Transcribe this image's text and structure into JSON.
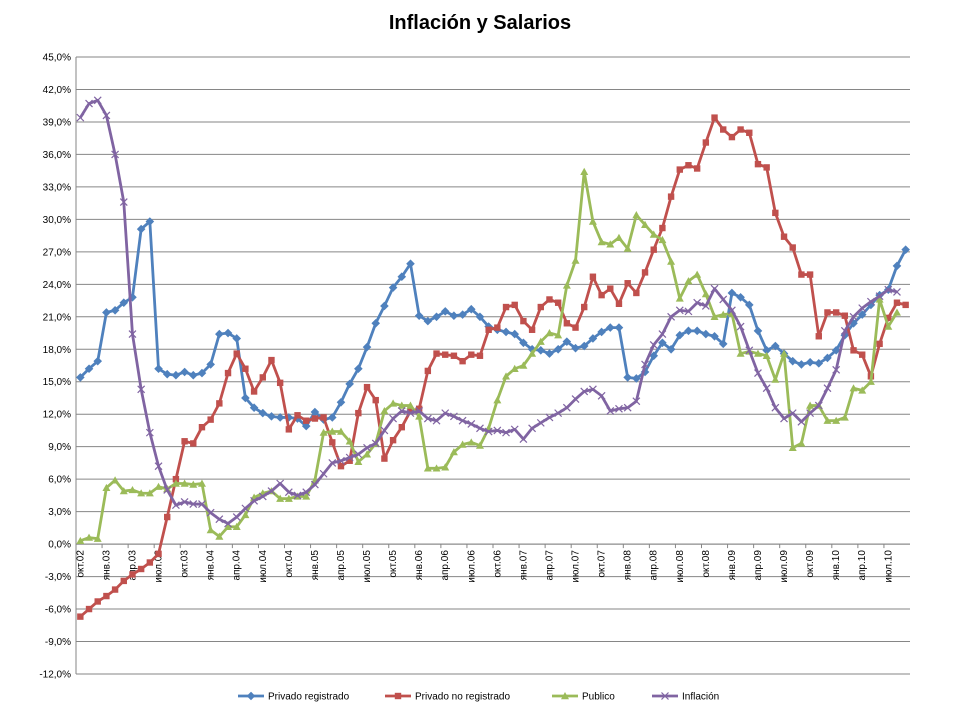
{
  "chart_data": {
    "type": "line",
    "title": "Inflación y Salarios",
    "xlabel": "",
    "ylabel": "",
    "ylim": [
      -12,
      45
    ],
    "y_ticks": [
      "45,0%",
      "42,0%",
      "39,0%",
      "36,0%",
      "33,0%",
      "30,0%",
      "27,0%",
      "24,0%",
      "21,0%",
      "18,0%",
      "15,0%",
      "12,0%",
      "9,0%",
      "6,0%",
      "3,0%",
      "0,0%",
      "-3,0%",
      "-6,0%",
      "-9,0%",
      "-12,0%"
    ],
    "y_tick_values": [
      45,
      42,
      39,
      36,
      33,
      30,
      27,
      24,
      21,
      18,
      15,
      12,
      9,
      6,
      3,
      0,
      -3,
      -6,
      -9,
      -12
    ],
    "grid": true,
    "legend_position": "bottom",
    "x_tick_labels": [
      {
        "i": 0,
        "label": "окт.02"
      },
      {
        "i": 3,
        "label": "янв.03"
      },
      {
        "i": 6,
        "label": "апр.03"
      },
      {
        "i": 9,
        "label": "июл.03"
      },
      {
        "i": 12,
        "label": "окт.03"
      },
      {
        "i": 15,
        "label": "янв.04"
      },
      {
        "i": 18,
        "label": "апр.04"
      },
      {
        "i": 21,
        "label": "июл.04"
      },
      {
        "i": 24,
        "label": "окт.04"
      },
      {
        "i": 27,
        "label": "янв.05"
      },
      {
        "i": 30,
        "label": "апр.05"
      },
      {
        "i": 33,
        "label": "июл.05"
      },
      {
        "i": 36,
        "label": "окт.05"
      },
      {
        "i": 39,
        "label": "янв.06"
      },
      {
        "i": 42,
        "label": "апр.06"
      },
      {
        "i": 45,
        "label": "июл.06"
      },
      {
        "i": 48,
        "label": "окт.06"
      },
      {
        "i": 51,
        "label": "янв.07"
      },
      {
        "i": 54,
        "label": "апр.07"
      },
      {
        "i": 57,
        "label": "июл.07"
      },
      {
        "i": 60,
        "label": "окт.07"
      },
      {
        "i": 63,
        "label": "янв.08"
      },
      {
        "i": 66,
        "label": "апр.08"
      },
      {
        "i": 69,
        "label": "июл.08"
      },
      {
        "i": 72,
        "label": "окт.08"
      },
      {
        "i": 75,
        "label": "янв.09"
      },
      {
        "i": 78,
        "label": "апр.09"
      },
      {
        "i": 81,
        "label": "июл.09"
      },
      {
        "i": 84,
        "label": "окт.09"
      },
      {
        "i": 87,
        "label": "янв.10"
      },
      {
        "i": 90,
        "label": "апр.10"
      },
      {
        "i": 93,
        "label": "июл.10"
      }
    ],
    "series": [
      {
        "name": "Privado registrado",
        "color": "#4F81BD",
        "marker": "diamond",
        "values": [
          15.4,
          16.2,
          16.9,
          21.4,
          21.6,
          22.3,
          22.8,
          29.1,
          29.8,
          16.2,
          15.7,
          15.6,
          15.9,
          15.6,
          15.8,
          16.6,
          19.4,
          19.5,
          19.0,
          13.5,
          12.6,
          12.1,
          11.8,
          11.7,
          11.7,
          11.6,
          10.9,
          12.2,
          11.5,
          11.7,
          13.1,
          14.8,
          16.2,
          18.2,
          20.4,
          22.0,
          23.7,
          24.7,
          25.9,
          21.1,
          20.6,
          21.0,
          21.5,
          21.1,
          21.2,
          21.7,
          21.0,
          20.1,
          19.8,
          19.6,
          19.4,
          18.6,
          18.0,
          17.9,
          17.6,
          18.0,
          18.7,
          18.1,
          18.3,
          19.0,
          19.6,
          20.0,
          20.0,
          15.4,
          15.3,
          15.9,
          17.4,
          18.6,
          18.0,
          19.3,
          19.7,
          19.7,
          19.4,
          19.2,
          18.5,
          23.2,
          22.8,
          22.1,
          19.7,
          17.9,
          18.3,
          17.6,
          16.9,
          16.6,
          16.8,
          16.7,
          17.2,
          17.9,
          19.3,
          20.4,
          21.2,
          22.1,
          23.0,
          23.5,
          25.7,
          27.2
        ]
      },
      {
        "name": "Privado no registrado",
        "color": "#C0504D",
        "marker": "square",
        "values": [
          -6.7,
          -6.0,
          -5.3,
          -4.8,
          -4.2,
          -3.4,
          -2.8,
          -2.3,
          -1.7,
          -0.9,
          2.5,
          6.0,
          9.5,
          9.3,
          10.8,
          11.5,
          13.0,
          15.8,
          17.6,
          16.2,
          14.1,
          15.4,
          17.0,
          14.9,
          10.6,
          11.9,
          11.4,
          11.6,
          11.7,
          9.4,
          7.2,
          7.7,
          12.1,
          14.5,
          13.3,
          7.9,
          9.6,
          10.8,
          12.3,
          12.5,
          16.0,
          17.6,
          17.5,
          17.4,
          16.9,
          17.5,
          17.4,
          19.8,
          20.0,
          21.9,
          22.1,
          20.6,
          19.8,
          21.9,
          22.6,
          22.3,
          20.4,
          20.0,
          21.9,
          24.7,
          23.0,
          23.6,
          22.2,
          24.1,
          23.2,
          25.1,
          27.2,
          29.2,
          32.1,
          34.6,
          35.0,
          34.7,
          37.1,
          39.4,
          38.3,
          37.6,
          38.3,
          38.0,
          35.1,
          34.8,
          30.6,
          28.4,
          27.4,
          24.9,
          24.9,
          19.2,
          21.4,
          21.4,
          21.1,
          17.9,
          17.5,
          15.5,
          18.5,
          20.9,
          22.3,
          22.1
        ]
      },
      {
        "name": "Publico",
        "color": "#9BBB59",
        "marker": "triangle",
        "values": [
          0.3,
          0.6,
          0.5,
          5.2,
          5.9,
          4.9,
          5.0,
          4.7,
          4.7,
          5.3,
          5.1,
          5.6,
          5.6,
          5.5,
          5.6,
          1.3,
          0.7,
          1.6,
          1.6,
          2.7,
          4.3,
          4.7,
          4.9,
          4.2,
          4.2,
          4.4,
          4.4,
          5.9,
          10.3,
          10.4,
          10.4,
          9.5,
          7.6,
          8.3,
          9.3,
          12.3,
          13.0,
          12.8,
          12.8,
          11.8,
          7.0,
          7.0,
          7.1,
          8.5,
          9.2,
          9.4,
          9.1,
          10.7,
          13.3,
          15.5,
          16.2,
          16.5,
          17.6,
          18.7,
          19.5,
          19.3,
          23.9,
          26.2,
          34.4,
          29.8,
          27.9,
          27.7,
          28.3,
          27.3,
          30.4,
          29.5,
          28.6,
          28.1,
          26.1,
          22.7,
          24.3,
          24.9,
          23.1,
          21.0,
          21.2,
          21.3,
          17.6,
          17.8,
          17.6,
          17.4,
          15.2,
          17.6,
          8.9,
          9.3,
          12.8,
          12.8,
          11.4,
          11.4,
          11.7,
          14.4,
          14.2,
          15.0,
          22.6,
          20.1,
          21.4
        ]
      },
      {
        "name": "Inflación",
        "color": "#8064A2",
        "marker": "x",
        "values": [
          39.4,
          40.7,
          41.0,
          39.6,
          36.0,
          31.6,
          19.4,
          14.3,
          10.3,
          7.2,
          5.0,
          3.6,
          3.9,
          3.7,
          3.7,
          2.9,
          2.3,
          1.9,
          2.5,
          3.3,
          4.0,
          4.4,
          4.9,
          5.6,
          4.8,
          4.5,
          4.8,
          5.5,
          6.5,
          7.5,
          7.7,
          8.0,
          8.3,
          8.9,
          9.3,
          10.5,
          11.6,
          12.3,
          12.1,
          12.3,
          11.6,
          11.4,
          12.1,
          11.8,
          11.4,
          11.1,
          10.7,
          10.4,
          10.5,
          10.3,
          10.6,
          9.7,
          10.7,
          11.2,
          11.7,
          12.1,
          12.6,
          13.4,
          14.1,
          14.3,
          13.7,
          12.3,
          12.5,
          12.6,
          13.2,
          16.6,
          18.4,
          19.4,
          21.0,
          21.6,
          21.5,
          22.3,
          22.0,
          23.6,
          22.6,
          21.6,
          20.1,
          17.9,
          15.8,
          14.4,
          12.6,
          11.6,
          12.1,
          11.3,
          12.1,
          12.8,
          14.4,
          16.1,
          19.7,
          21.0,
          21.8,
          22.4,
          22.9,
          23.5,
          23.3
        ]
      }
    ]
  }
}
